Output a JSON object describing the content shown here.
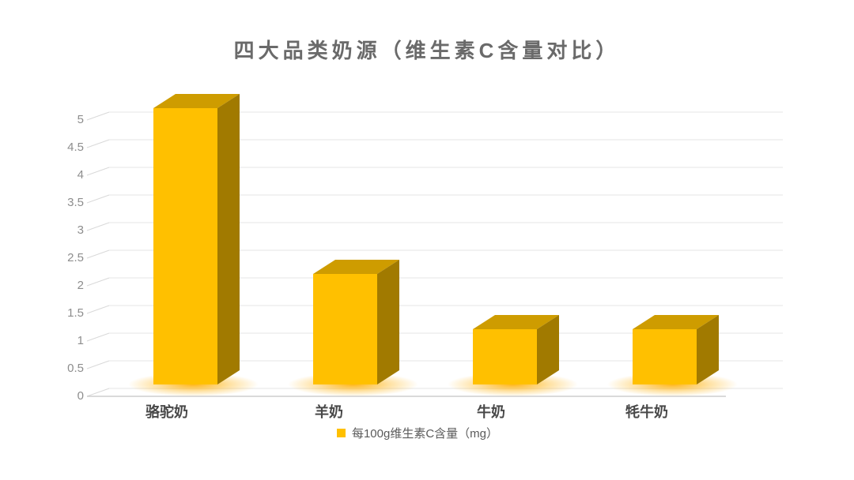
{
  "title": "四大品类奶源（维生素C含量对比）",
  "chart_data": {
    "type": "bar",
    "variant": "3d-column",
    "title": "四大品类奶源（维生素C含量对比）",
    "categories": [
      "骆驼奶",
      "羊奶",
      "牛奶",
      "牦牛奶"
    ],
    "values": [
      5,
      2,
      1,
      1
    ],
    "series_name": "每100g维生素C含量（mg）",
    "xlabel": "",
    "ylabel": "",
    "ylim": [
      0,
      5
    ],
    "ytick_step": 0.5,
    "ytick_labels": [
      "0",
      "0.5",
      "1",
      "1.5",
      "2",
      "2.5",
      "3",
      "3.5",
      "4",
      "4.5",
      "5"
    ],
    "grid": true,
    "legend_position": "bottom",
    "colors": {
      "bar_front": "#FFC000",
      "bar_top": "#CE9C00",
      "bar_side": "#A17A00",
      "glow": "#FFAE00",
      "gridline": "#e6e6e6",
      "tick": "#d9d9d9",
      "axis_line": "#c4c4c4",
      "title_text": "#6a6a6a",
      "ytick_text": "#8d8d8d",
      "category_text": "#484848",
      "legend_text": "#5a5a5a"
    }
  },
  "legend": {
    "marker": "square-icon",
    "marker_color": "#FFC000",
    "label": "每100g维生素C含量（mg）"
  }
}
